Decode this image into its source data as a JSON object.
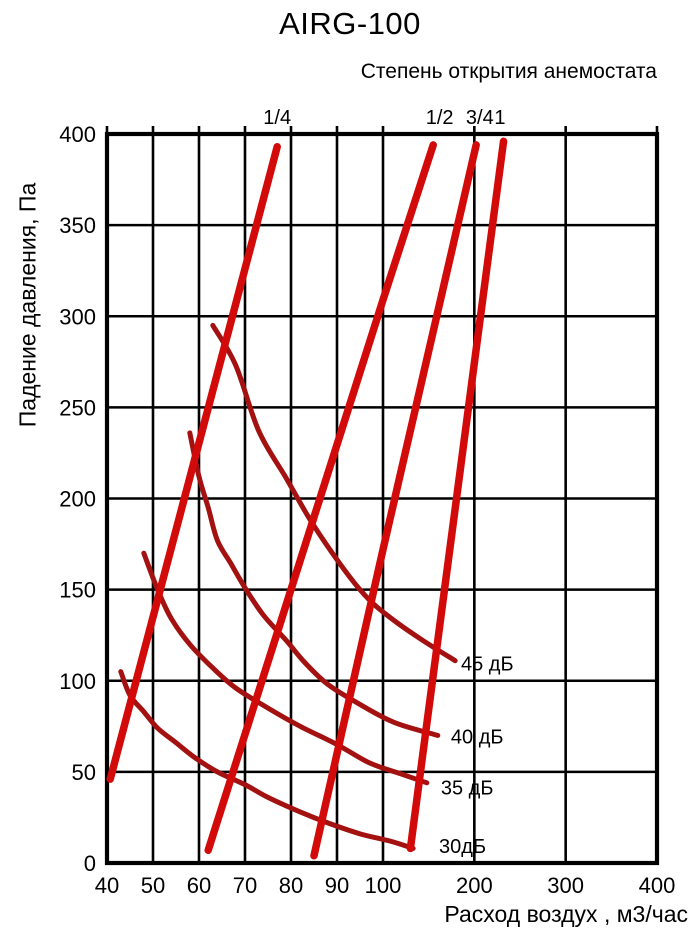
{
  "header": {
    "title": "AIRG-100",
    "subtitle": "Степень открытия анемостата"
  },
  "chart_data": {
    "type": "line",
    "title": "AIRG-100",
    "subtitle": "Степень открытия анемостата",
    "xlabel": "Расход воздух , м3/час",
    "ylabel": "Падение давления, Па",
    "x_ticks": [
      40,
      50,
      60,
      70,
      80,
      90,
      100,
      200,
      300,
      400
    ],
    "y_ticks": [
      0,
      50,
      100,
      150,
      200,
      250,
      300,
      350,
      400
    ],
    "x_axis_note": "piecewise scale: 40-100 linear, 100-400 linear compressed",
    "grid": true,
    "x_scale_stops": [
      [
        40,
        107
      ],
      [
        100,
        383
      ],
      [
        400,
        657
      ]
    ],
    "y_scale_stops": [
      [
        0,
        863
      ],
      [
        400,
        134
      ]
    ],
    "opening_curves": [
      {
        "label": "1/4",
        "points": [
          [
            40.7,
            46
          ],
          [
            77,
            393
          ]
        ],
        "label_v": 77
      },
      {
        "label": "1/2",
        "points": [
          [
            62,
            7
          ],
          [
            100,
            309
          ],
          [
            155,
            394
          ]
        ],
        "label_v": 162
      },
      {
        "label": "3/4",
        "points": [
          [
            85,
            4
          ],
          [
            100,
            172
          ],
          [
            202,
            394
          ]
        ],
        "label_v": 206
      },
      {
        "label": "1",
        "points": [
          [
            130,
            8
          ],
          [
            232,
            396
          ]
        ],
        "label_v": 228
      }
    ],
    "noise_curves": [
      {
        "label": "45 дБ",
        "points": [
          [
            63,
            295
          ],
          [
            68,
            273
          ],
          [
            73,
            237
          ],
          [
            79,
            211
          ],
          [
            84,
            189
          ],
          [
            89,
            170
          ],
          [
            94,
            153
          ],
          [
            98,
            142
          ],
          [
            115,
            132
          ],
          [
            144,
            122
          ],
          [
            179,
            111
          ]
        ],
        "label_at": [
          181,
          110
        ]
      },
      {
        "label": "40 дБ",
        "points": [
          [
            58,
            236
          ],
          [
            60,
            212
          ],
          [
            62,
            195
          ],
          [
            64,
            177
          ],
          [
            67,
            164
          ],
          [
            70,
            151
          ],
          [
            74,
            136
          ],
          [
            79,
            122
          ],
          [
            83,
            110
          ],
          [
            88,
            98
          ],
          [
            95,
            87
          ],
          [
            113,
            77
          ],
          [
            160,
            70
          ]
        ],
        "label_at": [
          170,
          70
        ]
      },
      {
        "label": "35 дБ",
        "points": [
          [
            48,
            170
          ],
          [
            51,
            150
          ],
          [
            54,
            134
          ],
          [
            58,
            120
          ],
          [
            63,
            107
          ],
          [
            68,
            96
          ],
          [
            75,
            85
          ],
          [
            82,
            75
          ],
          [
            90,
            65
          ],
          [
            97,
            55
          ],
          [
            119,
            49
          ],
          [
            148,
            44
          ]
        ],
        "label_at": [
          159,
          42
        ]
      },
      {
        "label": "30дБ",
        "points": [
          [
            43,
            105
          ],
          [
            45,
            92
          ],
          [
            48,
            83
          ],
          [
            51,
            74
          ],
          [
            55,
            66
          ],
          [
            59,
            58
          ],
          [
            64,
            50
          ],
          [
            70,
            43
          ],
          [
            75,
            36
          ],
          [
            82,
            28
          ],
          [
            88,
            22
          ],
          [
            95,
            16
          ],
          [
            108,
            12
          ],
          [
            133,
            8
          ]
        ],
        "label_at": [
          157,
          10
        ]
      }
    ],
    "colors": {
      "opening_curve": "#d20a0a",
      "noise_curve": "#a31111",
      "grid": "#000000",
      "text": "#000000",
      "background": "#ffffff"
    }
  }
}
